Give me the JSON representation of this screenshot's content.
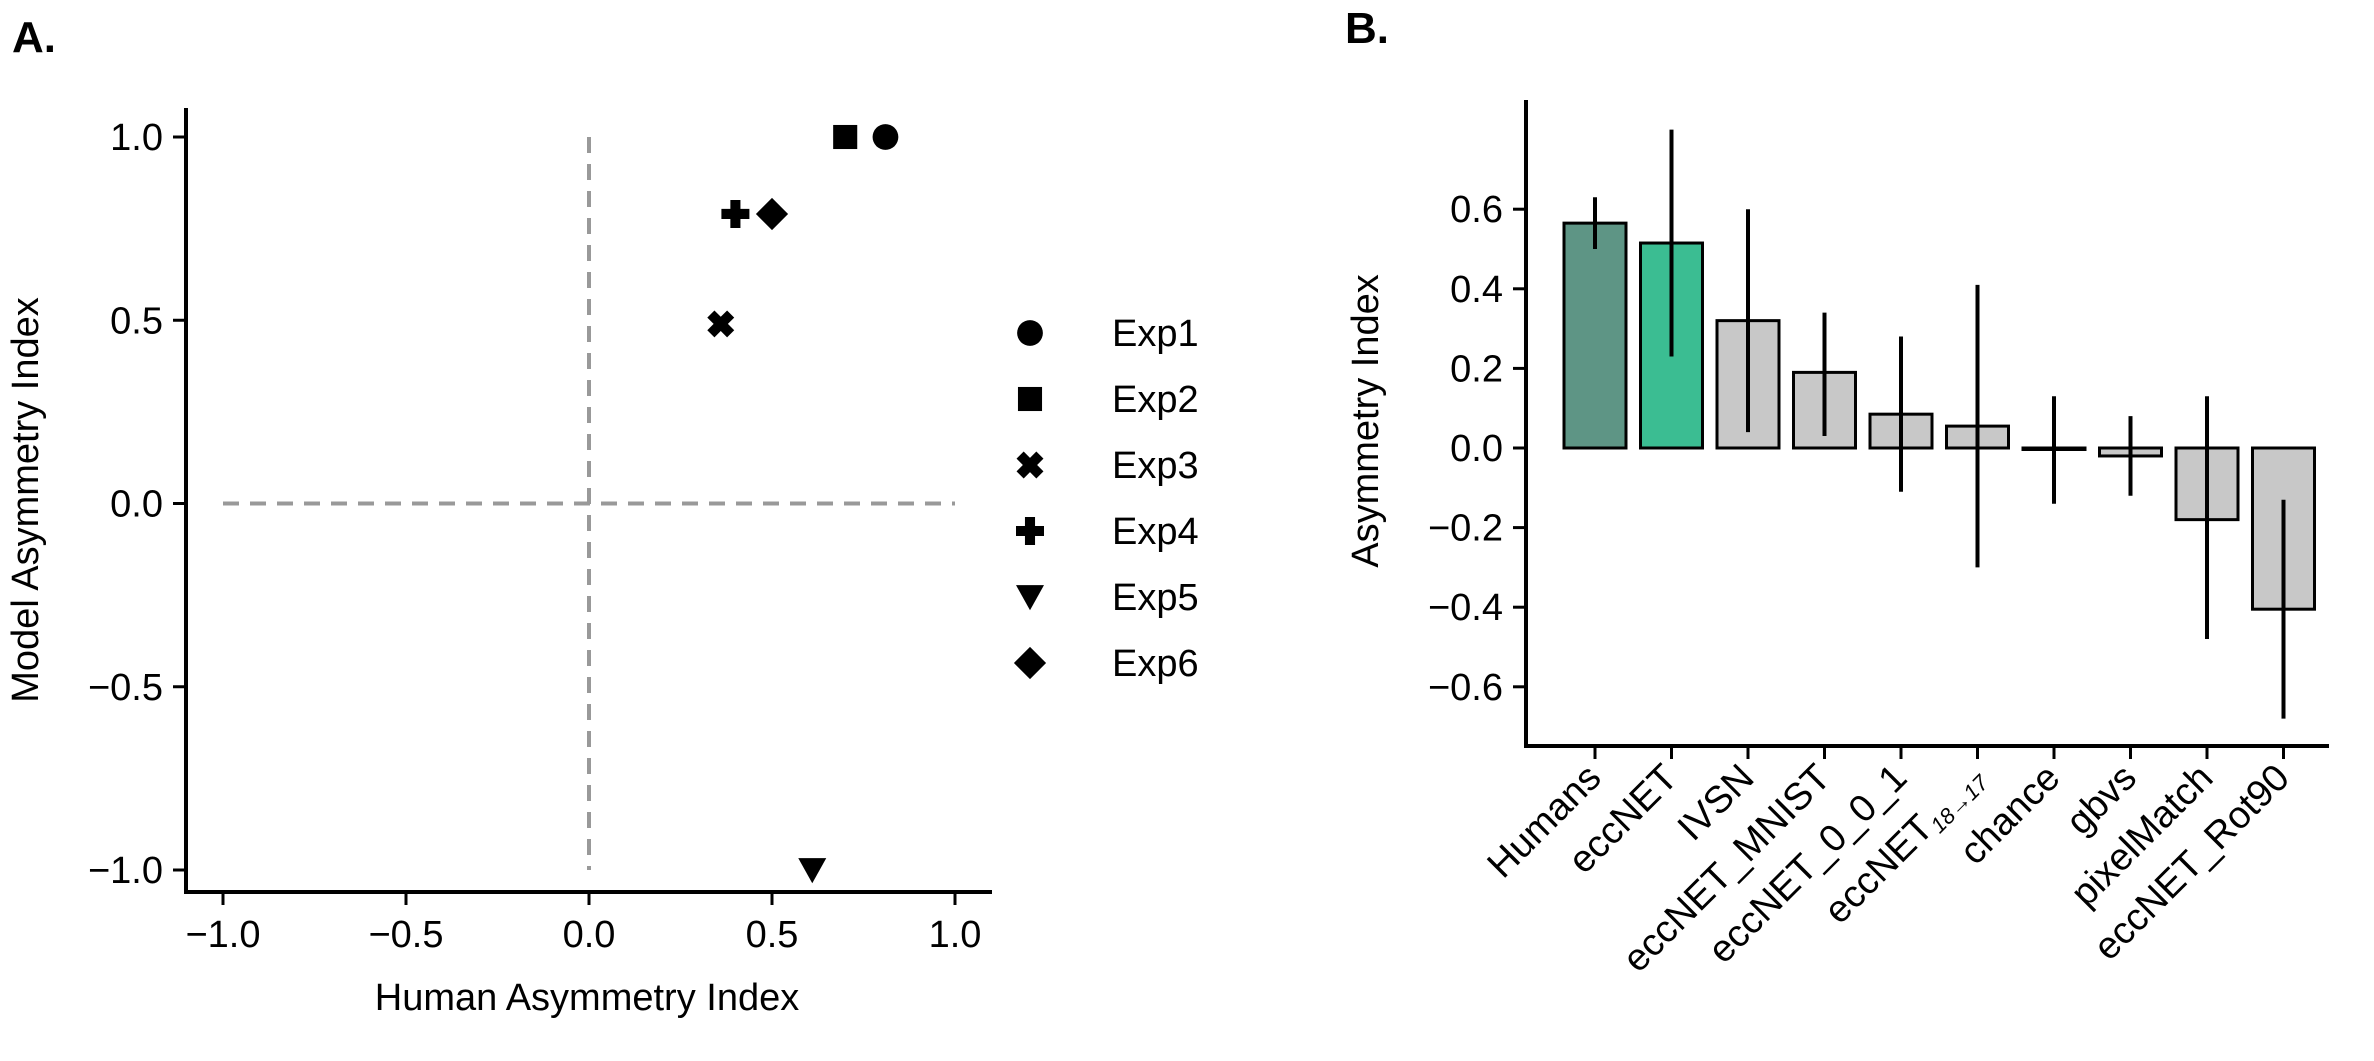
{
  "chart_data": [
    {
      "panel": "A.",
      "type": "scatter",
      "title": "",
      "xlabel": "Human Asymmetry Index",
      "ylabel": "Model Asymmetry Index",
      "xlim": [
        -1.0,
        1.0
      ],
      "ylim": [
        -1.0,
        1.0
      ],
      "xticks": [
        "−1.0",
        "−0.5",
        "0.0",
        "0.5",
        "1.0"
      ],
      "yticks": [
        "1.0",
        "0.5",
        "0.0",
        "−0.5",
        "−1.0"
      ],
      "reference_lines": {
        "x": 0.0,
        "y": 0.0,
        "style": "dashed",
        "color": "#999999"
      },
      "legend_position": "right",
      "series": [
        {
          "name": "Exp1",
          "marker": "circle",
          "x": 0.81,
          "y": 1.0
        },
        {
          "name": "Exp2",
          "marker": "square",
          "x": 0.7,
          "y": 1.0
        },
        {
          "name": "Exp3",
          "marker": "x",
          "x": 0.36,
          "y": 0.49
        },
        {
          "name": "Exp4",
          "marker": "plus",
          "x": 0.4,
          "y": 0.79
        },
        {
          "name": "Exp5",
          "marker": "triangle-down",
          "x": 0.61,
          "y": -1.0
        },
        {
          "name": "Exp6",
          "marker": "diamond",
          "x": 0.5,
          "y": 0.79
        }
      ]
    },
    {
      "panel": "B.",
      "type": "bar",
      "title": "",
      "xlabel": "",
      "ylabel": "Asymmetry Index",
      "ylim": [
        -0.75,
        0.87
      ],
      "yticks": [
        "0.6",
        "0.4",
        "0.2",
        "0.0",
        "−0.2",
        "−0.4",
        "−0.6"
      ],
      "categories": [
        "Humans",
        "eccNET",
        "IVSN",
        "eccNET_MNIST",
        "eccNET_0_0_1",
        "eccNET",
        "chance",
        "gbvs",
        "pixelMatch",
        "eccNET_Rot90"
      ],
      "category_subscripts": [
        "",
        "",
        "",
        "",
        "",
        "18→17",
        "",
        "",
        "",
        ""
      ],
      "values": [
        0.565,
        0.515,
        0.32,
        0.19,
        0.085,
        0.055,
        0.0,
        -0.02,
        -0.18,
        -0.405
      ],
      "error_low": [
        0.5,
        0.23,
        0.04,
        0.03,
        -0.11,
        -0.3,
        -0.14,
        -0.12,
        -0.48,
        -0.68
      ],
      "error_high": [
        0.63,
        0.8,
        0.6,
        0.34,
        0.28,
        0.41,
        0.13,
        0.08,
        0.13,
        -0.13
      ],
      "colors": [
        "#5e9585",
        "#3bbd92",
        "#c8c8c8",
        "#c8c8c8",
        "#c8c8c8",
        "#c8c8c8",
        "#c8c8c8",
        "#c8c8c8",
        "#c8c8c8",
        "#c8c8c8"
      ]
    }
  ]
}
